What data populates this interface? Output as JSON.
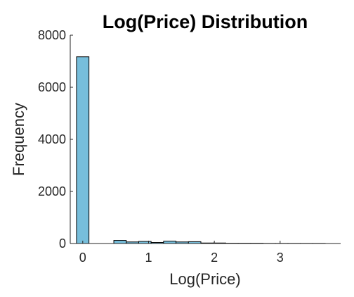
{
  "chart_data": {
    "type": "bar",
    "title": "Log(Price) Distribution",
    "xlabel": "Log(Price)",
    "ylabel": "Frequency",
    "xlim": [
      -0.19,
      3.92
    ],
    "ylim": [
      0,
      8000
    ],
    "xticks": [
      0,
      1,
      2,
      3
    ],
    "yticks": [
      0,
      2000,
      4000,
      6000,
      8000
    ],
    "grid": false,
    "bar_color": "#77bedb",
    "edge_color": "#000000",
    "bin_edges": [
      -0.0945,
      0.0945,
      0.2835,
      0.4725,
      0.6615,
      0.8505,
      1.0395,
      1.2285,
      1.4175,
      1.6065,
      1.7955,
      1.9845,
      2.1735,
      2.3625,
      2.5515,
      2.7405,
      2.9295,
      3.1185,
      3.3075,
      3.4965,
      3.6855
    ],
    "counts": [
      7170,
      0,
      0,
      120,
      60,
      80,
      40,
      90,
      60,
      70,
      20,
      20,
      10,
      10,
      10,
      5,
      5,
      5,
      5,
      5
    ]
  }
}
